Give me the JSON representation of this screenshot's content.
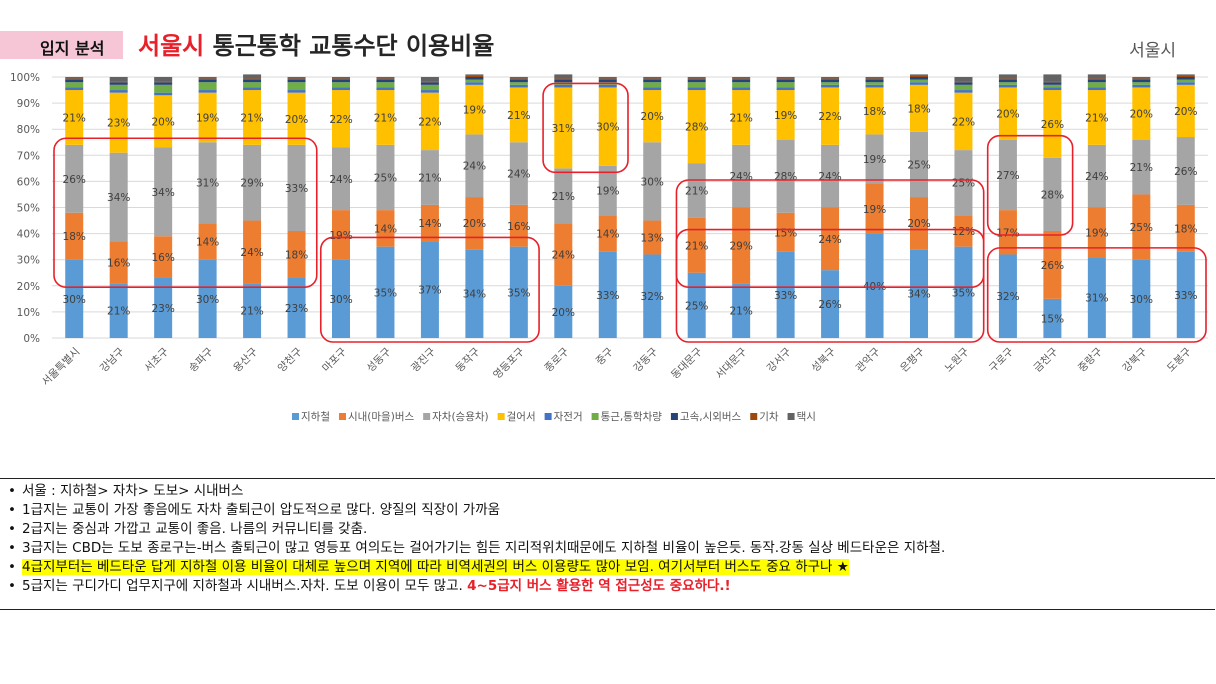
{
  "header": {
    "tag": "입지 분석",
    "title_city": "서울시",
    "title_rest": "통근통학 교통수단 이용비율",
    "region_label": "서울시"
  },
  "chart_data": {
    "type": "bar",
    "stacked": true,
    "ylim": [
      0,
      100
    ],
    "y_ticks": [
      "0%",
      "10%",
      "20%",
      "30%",
      "40%",
      "50%",
      "60%",
      "70%",
      "80%",
      "90%",
      "100%"
    ],
    "categories": [
      "서울특별시",
      "강남구",
      "서초구",
      "송파구",
      "용산구",
      "양천구",
      "마포구",
      "성동구",
      "광진구",
      "동작구",
      "영등포구",
      "종로구",
      "중구",
      "강동구",
      "동대문구",
      "서대문구",
      "강서구",
      "성북구",
      "관악구",
      "은평구",
      "노원구",
      "구로구",
      "금천구",
      "중랑구",
      "강북구",
      "도봉구"
    ],
    "series": [
      {
        "name": "지하철",
        "color": "#5b9bd5",
        "values": [
          30,
          21,
          23,
          30,
          21,
          23,
          30,
          35,
          37,
          34,
          35,
          20,
          33,
          32,
          25,
          21,
          33,
          26,
          40,
          34,
          35,
          32,
          15,
          31,
          30,
          33
        ]
      },
      {
        "name": "시내(마을)버스",
        "color": "#ed7d31",
        "values": [
          18,
          16,
          16,
          14,
          24,
          18,
          19,
          14,
          14,
          20,
          16,
          24,
          14,
          13,
          21,
          29,
          15,
          24,
          19,
          20,
          12,
          17,
          26,
          19,
          25,
          18
        ]
      },
      {
        "name": "자차(승용차)",
        "color": "#a5a5a5",
        "values": [
          26,
          34,
          34,
          31,
          29,
          33,
          24,
          25,
          21,
          24,
          24,
          21,
          19,
          30,
          21,
          24,
          28,
          24,
          19,
          25,
          25,
          27,
          28,
          24,
          21,
          26
        ]
      },
      {
        "name": "걸어서",
        "color": "#ffc000",
        "values": [
          21,
          23,
          20,
          19,
          21,
          20,
          22,
          21,
          22,
          19,
          21,
          31,
          30,
          20,
          28,
          21,
          19,
          22,
          18,
          18,
          22,
          20,
          26,
          21,
          20,
          20
        ]
      },
      {
        "name": "자전거",
        "color": "#4472c4",
        "values": [
          1,
          1,
          1,
          1,
          1,
          1,
          1,
          1,
          1,
          1,
          1,
          1,
          1,
          1,
          1,
          1,
          1,
          1,
          1,
          1,
          1,
          1,
          1,
          1,
          1,
          1
        ]
      },
      {
        "name": "통근,통학차량",
        "color": "#70ad47",
        "values": [
          2,
          2,
          3,
          3,
          2,
          3,
          2,
          2,
          2,
          1,
          1,
          1,
          1,
          2,
          2,
          2,
          2,
          1,
          1,
          1,
          2,
          1,
          1,
          2,
          1,
          1
        ]
      },
      {
        "name": "고속,시외버스",
        "color": "#264478",
        "values": [
          1,
          1,
          1,
          1,
          1,
          1,
          1,
          1,
          1,
          1,
          1,
          1,
          1,
          1,
          1,
          1,
          1,
          1,
          1,
          1,
          1,
          1,
          1,
          1,
          1,
          1
        ]
      },
      {
        "name": "기차",
        "color": "#9e480e",
        "values": [
          0.4,
          0.4,
          0.4,
          0.4,
          0.4,
          0.4,
          0.4,
          0.4,
          0.4,
          0.4,
          0.4,
          0.4,
          0.4,
          0.4,
          0.4,
          0.4,
          0.4,
          0.4,
          0.4,
          0.4,
          0.4,
          0.4,
          0.4,
          0.4,
          0.4,
          0.4
        ]
      },
      {
        "name": "택시",
        "color": "#636363",
        "values": [
          0.6,
          1.6,
          1.6,
          0.6,
          1.6,
          0.6,
          0.6,
          0.6,
          1.6,
          0.6,
          0.6,
          1.6,
          0.6,
          0.6,
          0.6,
          0.6,
          0.6,
          0.6,
          0.6,
          0.6,
          1.6,
          1.6,
          2.6,
          1.6,
          0.6,
          0.6
        ]
      }
    ],
    "labels": {
      "지하철": [
        "30%",
        "21%",
        "23%",
        "30%",
        "21%",
        "23%",
        "30%",
        "35%",
        "37%",
        "34%",
        "35%",
        "20%",
        "33%",
        "32%",
        "25%",
        "21%",
        "33%",
        "26%",
        "40%",
        "34%",
        "35%",
        "32%",
        "15%",
        "31%",
        "30%",
        "33%"
      ],
      "시내(마을)버스": [
        "18%",
        "16%",
        "16%",
        "14%",
        "24%",
        "18%",
        "19%",
        "14%",
        "14%",
        "20%",
        "16%",
        "24%",
        "14%",
        "13%",
        "21%",
        "29%",
        "15%",
        "24%",
        "19%",
        "20%",
        "12%",
        "17%",
        "26%",
        "19%",
        "25%",
        "18%"
      ],
      "자차(승용차)": [
        "26%",
        "34%",
        "34%",
        "31%",
        "29%",
        "33%",
        "24%",
        "25%",
        "21%",
        "24%",
        "24%",
        "21%",
        "19%",
        "30%",
        "21%",
        "24%",
        "28%",
        "24%",
        "19%",
        "25%",
        "25%",
        "27%",
        "28%",
        "24%",
        "21%",
        "26%"
      ],
      "걸어서": [
        "21%",
        "23%",
        "20%",
        "19%",
        "21%",
        "20%",
        "22%",
        "21%",
        "22%",
        "19%",
        "21%",
        "31%",
        "30%",
        "20%",
        "28%",
        "21%",
        "19%",
        "22%",
        "18%",
        "18%",
        "22%",
        "20%",
        "26%",
        "21%",
        "20%",
        "20%"
      ]
    },
    "legend_position": "bottom",
    "grid": true,
    "highlight_groups": [
      {
        "categories": [
          "서울특별시",
          "강남구",
          "서초구",
          "송파구",
          "용산구",
          "양천구"
        ],
        "series": [
          "시내(마을)버스",
          "자차(승용차)"
        ]
      },
      {
        "categories": [
          "마포구",
          "성동구",
          "광진구",
          "동작구",
          "영등포구"
        ],
        "series": [
          "지하철"
        ]
      },
      {
        "categories": [
          "종로구",
          "중구"
        ],
        "series": [
          "걸어서"
        ]
      },
      {
        "categories": [
          "동대문구",
          "서대문구",
          "강서구",
          "성북구",
          "관악구",
          "은평구",
          "노원구"
        ],
        "series": [
          "시내(마을)버스"
        ]
      },
      {
        "categories": [
          "동대문구",
          "서대문구",
          "강서구",
          "성북구",
          "관악구",
          "은평구",
          "노원구"
        ],
        "series": [
          "지하철"
        ]
      },
      {
        "categories": [
          "구로구",
          "금천구"
        ],
        "series": [
          "자차(승용차)"
        ]
      },
      {
        "categories": [
          "구로구",
          "금천구",
          "중랑구",
          "강북구",
          "도봉구"
        ],
        "series": [
          "지하철"
        ]
      }
    ]
  },
  "notes": [
    {
      "text": "서울 : 지하철> 자차> 도보> 시내버스"
    },
    {
      "text": "1급지는 교통이 가장 좋음에도 자차 출퇴근이 압도적으로 많다. 양질의 직장이 가까움"
    },
    {
      "text": "2급지는  중심과 가깝고 교통이 좋음. 나름의 커뮤니티를 갖춤."
    },
    {
      "text": "3급지는 CBD는 도보 종로구는-버스 출퇴근이 많고 영등포 여의도는 걸어가기는 힘든 지리적위치때문에도 지하철 비율이 높은듯. 동작.강동 실상 베드타운은 지하철."
    },
    {
      "text": "4급지부터는 베드타운 답게 지하철 이용 비율이 대체로 높으며 지역에 따라 비역세권의 버스 이용량도 많아 보임. 여기서부터 버스도 중요 하구나 ★"
    },
    {
      "text": "5급지는 구디가디 업무지구에 지하철과 시내버스.자차. 도보 이용이 모두 많고. ",
      "emphasis": "4~5급지 버스 활용한 역 접근성도 중요하다.!"
    }
  ]
}
